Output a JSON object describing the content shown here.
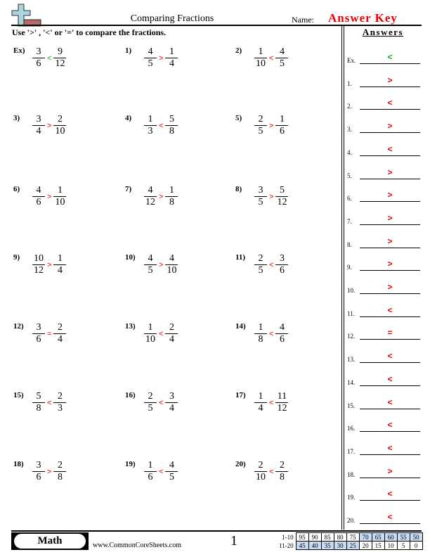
{
  "header": {
    "title": "Comparing Fractions",
    "name_label": "Name:",
    "name_value": "Answer Key",
    "instructions": "Use '>' , '<' or '=' to compare the fractions."
  },
  "colors": {
    "answer": "#e00000",
    "example": "#11aa11",
    "score_highlight": "#c6dcf5"
  },
  "logo_icon": "plus-minus-logo",
  "problems": [
    {
      "label": "Ex)",
      "a": [
        "3",
        "6"
      ],
      "b": [
        "9",
        "12"
      ],
      "symbol": "<"
    },
    {
      "label": "1)",
      "a": [
        "4",
        "5"
      ],
      "b": [
        "1",
        "4"
      ],
      "symbol": ">"
    },
    {
      "label": "2)",
      "a": [
        "1",
        "10"
      ],
      "b": [
        "4",
        "5"
      ],
      "symbol": "<"
    },
    {
      "label": "3)",
      "a": [
        "3",
        "4"
      ],
      "b": [
        "2",
        "10"
      ],
      "symbol": ">"
    },
    {
      "label": "4)",
      "a": [
        "1",
        "3"
      ],
      "b": [
        "5",
        "8"
      ],
      "symbol": "<"
    },
    {
      "label": "5)",
      "a": [
        "2",
        "5"
      ],
      "b": [
        "1",
        "6"
      ],
      "symbol": ">"
    },
    {
      "label": "6)",
      "a": [
        "4",
        "6"
      ],
      "b": [
        "1",
        "10"
      ],
      "symbol": ">"
    },
    {
      "label": "7)",
      "a": [
        "4",
        "12"
      ],
      "b": [
        "1",
        "8"
      ],
      "symbol": ">"
    },
    {
      "label": "8)",
      "a": [
        "3",
        "5"
      ],
      "b": [
        "5",
        "12"
      ],
      "symbol": ">"
    },
    {
      "label": "9)",
      "a": [
        "10",
        "12"
      ],
      "b": [
        "1",
        "4"
      ],
      "symbol": ">"
    },
    {
      "label": "10)",
      "a": [
        "4",
        "5"
      ],
      "b": [
        "4",
        "10"
      ],
      "symbol": ">"
    },
    {
      "label": "11)",
      "a": [
        "2",
        "5"
      ],
      "b": [
        "3",
        "6"
      ],
      "symbol": "<"
    },
    {
      "label": "12)",
      "a": [
        "3",
        "6"
      ],
      "b": [
        "2",
        "4"
      ],
      "symbol": "="
    },
    {
      "label": "13)",
      "a": [
        "1",
        "10"
      ],
      "b": [
        "2",
        "4"
      ],
      "symbol": "<"
    },
    {
      "label": "14)",
      "a": [
        "1",
        "8"
      ],
      "b": [
        "4",
        "6"
      ],
      "symbol": "<"
    },
    {
      "label": "15)",
      "a": [
        "5",
        "8"
      ],
      "b": [
        "2",
        "3"
      ],
      "symbol": "<"
    },
    {
      "label": "16)",
      "a": [
        "2",
        "5"
      ],
      "b": [
        "3",
        "4"
      ],
      "symbol": "<"
    },
    {
      "label": "17)",
      "a": [
        "1",
        "4"
      ],
      "b": [
        "11",
        "12"
      ],
      "symbol": "<"
    },
    {
      "label": "18)",
      "a": [
        "3",
        "6"
      ],
      "b": [
        "2",
        "8"
      ],
      "symbol": ">"
    },
    {
      "label": "19)",
      "a": [
        "1",
        "6"
      ],
      "b": [
        "4",
        "5"
      ],
      "symbol": "<"
    },
    {
      "label": "20)",
      "a": [
        "2",
        "10"
      ],
      "b": [
        "2",
        "8"
      ],
      "symbol": "<"
    }
  ],
  "answers": {
    "title": "Answers",
    "items": [
      {
        "label": "Ex.",
        "value": "<"
      },
      {
        "label": "1.",
        "value": ">"
      },
      {
        "label": "2.",
        "value": "<"
      },
      {
        "label": "3.",
        "value": ">"
      },
      {
        "label": "4.",
        "value": "<"
      },
      {
        "label": "5.",
        "value": ">"
      },
      {
        "label": "6.",
        "value": ">"
      },
      {
        "label": "7.",
        "value": ">"
      },
      {
        "label": "8.",
        "value": ">"
      },
      {
        "label": "9.",
        "value": ">"
      },
      {
        "label": "10.",
        "value": ">"
      },
      {
        "label": "11.",
        "value": "<"
      },
      {
        "label": "12.",
        "value": "="
      },
      {
        "label": "13.",
        "value": "<"
      },
      {
        "label": "14.",
        "value": "<"
      },
      {
        "label": "15.",
        "value": "<"
      },
      {
        "label": "16.",
        "value": "<"
      },
      {
        "label": "17.",
        "value": "<"
      },
      {
        "label": "18.",
        "value": ">"
      },
      {
        "label": "19.",
        "value": "<"
      },
      {
        "label": "20.",
        "value": "<"
      }
    ]
  },
  "footer": {
    "subject": "Math",
    "site": "www.CommonCoreSheets.com",
    "page": "1",
    "score_rows": [
      {
        "label": "1-10",
        "values": [
          "95",
          "90",
          "85",
          "80",
          "75",
          "70",
          "65",
          "60",
          "55",
          "50"
        ],
        "highlighted": [
          false,
          false,
          false,
          false,
          false,
          true,
          true,
          true,
          true,
          true
        ]
      },
      {
        "label": "11-20",
        "values": [
          "45",
          "40",
          "35",
          "30",
          "25",
          "20",
          "15",
          "10",
          "5",
          "0"
        ],
        "highlighted": [
          true,
          true,
          true,
          true,
          true,
          false,
          false,
          false,
          false,
          false
        ]
      }
    ]
  }
}
